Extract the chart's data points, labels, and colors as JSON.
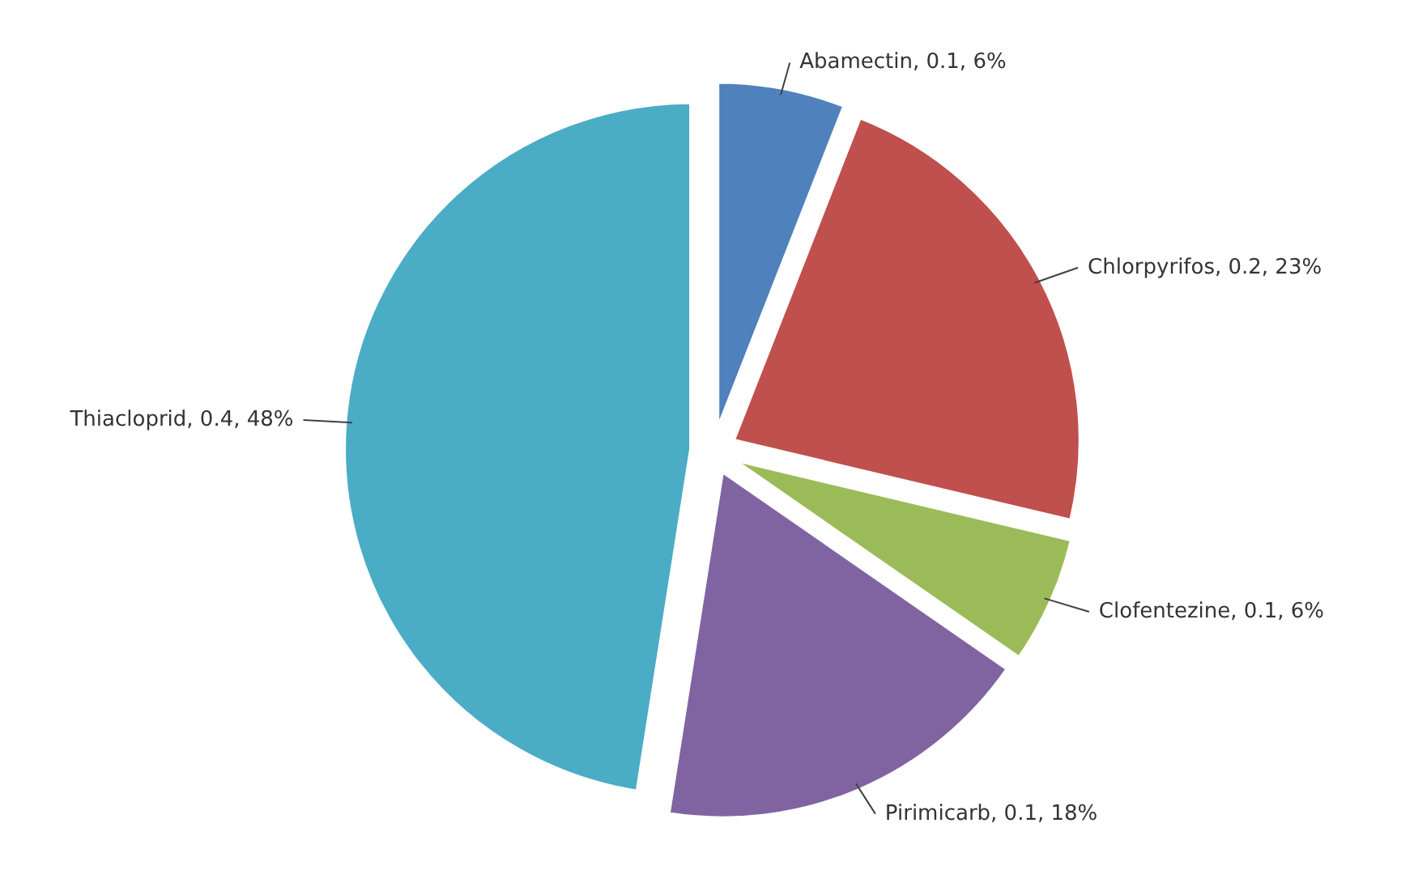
{
  "chart_data": {
    "type": "pie",
    "categories": [
      "Abamectin",
      "Chlorpyrifos",
      "Clofentezine",
      "Pirimicarb",
      "Thiacloprid"
    ],
    "values": [
      6,
      23,
      6,
      18,
      48
    ],
    "value_labels": [
      "0.1, 6%",
      "0.2, 23%",
      "0.1, 6%",
      "0.1, 18%",
      "0.4, 48%"
    ],
    "colors": [
      "#4f81bd",
      "#c0504d",
      "#9bbb59",
      "#8064a2",
      "#4bacc6"
    ]
  }
}
